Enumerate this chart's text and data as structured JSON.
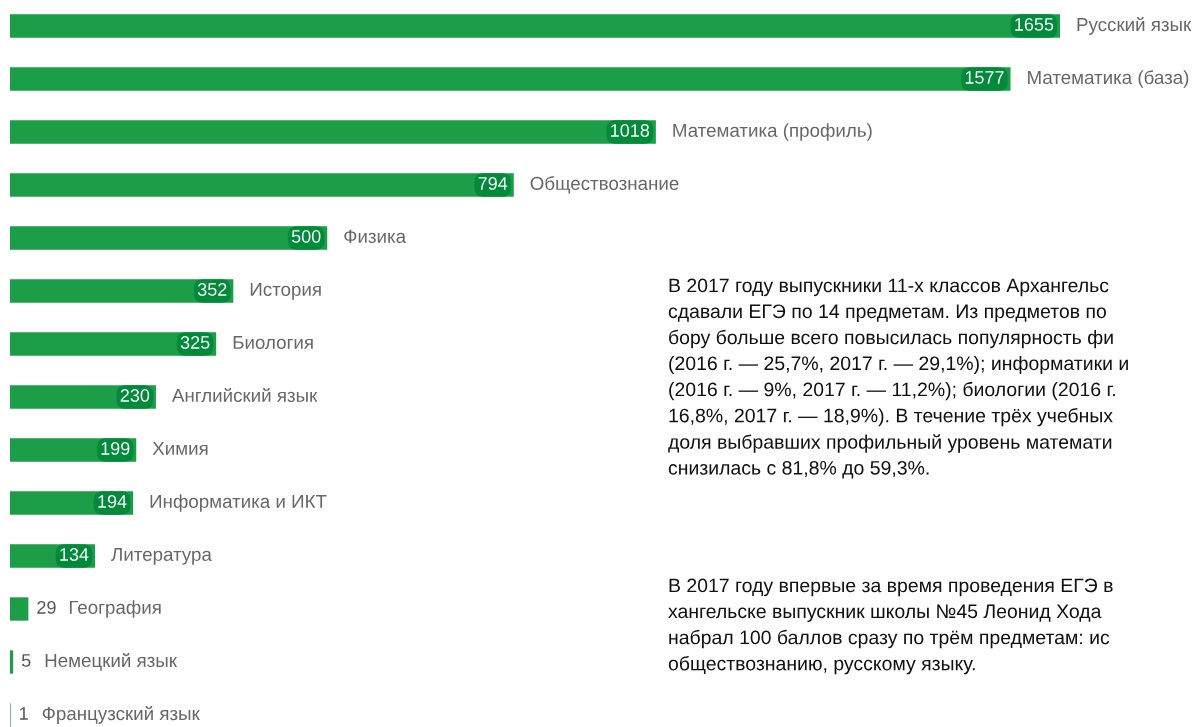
{
  "chart_data": {
    "type": "bar",
    "orientation": "horizontal",
    "data_labels": true,
    "color": "#1c9d48",
    "categories": [
      "Русский язык",
      "Математика (база)",
      "Математика (профиль)",
      "Обществознание",
      "Физика",
      "История",
      "Биология",
      "Английский язык",
      "Химия",
      "Информатика и ИКТ",
      "Литература",
      "География",
      "Немецкий язык",
      "Французский язык"
    ],
    "values": [
      1655,
      1577,
      1018,
      794,
      500,
      352,
      325,
      230,
      199,
      194,
      134,
      29,
      5,
      1
    ],
    "annotations": [
      "В 2017 году выпускники 11-х классов Архангельс\nсдавали ЕГЭ по 14 предметам. Из предметов по\nбору больше всего повысилась популярность фи\n(2016 г. — 25,7%, 2017 г. — 29,1%); информатики и\n(2016 г. — 9%, 2017 г. — 11,2%); биологии (2016 г.\n16,8%, 2017 г. — 18,9%). В течение трёх учебных\nдоля выбравших профильный уровень математи\nснизилась с 81,8% до 59,3%.",
      "В 2017 году впервые за время проведения ЕГЭ в\nхангельске выпускник школы №45 Леонид Хода\nнабрал 100 баллов сразу по трём предметам: ис\nобществознанию, русскому языку."
    ]
  }
}
